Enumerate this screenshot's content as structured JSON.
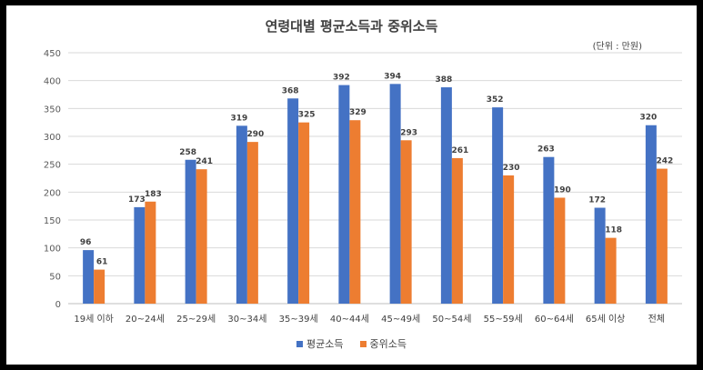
{
  "chart_data": {
    "type": "bar",
    "title": "연령대별 평균소득과 중위소득",
    "unit_note": "(단위 : 만원)",
    "categories": [
      "19세 이하",
      "20~24세",
      "25~29세",
      "30~34세",
      "35~39세",
      "40~44세",
      "45~49세",
      "50~54세",
      "55~59세",
      "60~64세",
      "65세 이상",
      "전체"
    ],
    "series": [
      {
        "name": "평균소득",
        "color": "#4472C4",
        "values": [
          96,
          173,
          258,
          319,
          368,
          392,
          394,
          388,
          352,
          263,
          172,
          320
        ]
      },
      {
        "name": "중위소득",
        "color": "#ED7D31",
        "values": [
          61,
          183,
          241,
          290,
          325,
          329,
          293,
          261,
          230,
          190,
          118,
          242
        ]
      }
    ],
    "ylim": [
      0,
      450
    ],
    "yticks": [
      0,
      50,
      100,
      150,
      200,
      250,
      300,
      350,
      400,
      450
    ],
    "grid": true,
    "legend": "bottom"
  }
}
